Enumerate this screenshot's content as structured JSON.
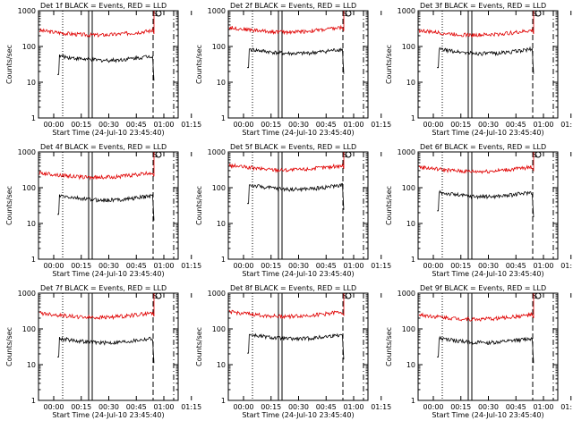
{
  "chart_data": [
    {
      "type": "line",
      "title": "Det 1f BLACK = Events, RED = LLD",
      "xlabel": "Start Time (24-Jul-10 23:45:40)",
      "ylabel": "Counts/sec",
      "y_scale": "log",
      "ylim": [
        1,
        1000
      ],
      "xticks": [
        "00:00",
        "00:15",
        "00:30",
        "00:45",
        "01:00",
        "01:15"
      ],
      "yticks": [
        "1",
        "10",
        "100",
        "1000"
      ],
      "series": [
        {
          "name": "RED",
          "color": "#e00000",
          "level": 280
        },
        {
          "name": "BLACK",
          "color": "#000000",
          "level": 55
        }
      ]
    },
    {
      "type": "line",
      "title": "Det 2f BLACK = Events, RED = LLD",
      "xlabel": "Start Time (24-Jul-10 23:45:40)",
      "ylabel": "Counts/sec",
      "y_scale": "log",
      "ylim": [
        1,
        1000
      ],
      "xticks": [
        "00:00",
        "00:15",
        "00:30",
        "00:45",
        "01:00",
        "01:15"
      ],
      "yticks": [
        "1",
        "10",
        "100",
        "1000"
      ],
      "series": [
        {
          "name": "RED",
          "color": "#e00000",
          "level": 340
        },
        {
          "name": "BLACK",
          "color": "#000000",
          "level": 85
        }
      ]
    },
    {
      "type": "line",
      "title": "Det 3f BLACK = Events, RED = LLD",
      "xlabel": "Start Time (24-Jul-10 23:45:40)",
      "ylabel": "Counts/sec",
      "y_scale": "log",
      "ylim": [
        1,
        1000
      ],
      "xticks": [
        "00:00",
        "00:15",
        "00:30",
        "00:45",
        "01:00",
        "01:15"
      ],
      "yticks": [
        "1",
        "10",
        "100",
        "1000"
      ],
      "series": [
        {
          "name": "RED",
          "color": "#e00000",
          "level": 280
        },
        {
          "name": "BLACK",
          "color": "#000000",
          "level": 85
        }
      ]
    },
    {
      "type": "line",
      "title": "Det 4f BLACK = Events, RED = LLD",
      "xlabel": "Start Time (24-Jul-10 23:45:40)",
      "ylabel": "Counts/sec",
      "y_scale": "log",
      "ylim": [
        1,
        1000
      ],
      "xticks": [
        "00:00",
        "00:15",
        "00:30",
        "00:45",
        "01:00",
        "01:15"
      ],
      "yticks": [
        "1",
        "10",
        "100",
        "1000"
      ],
      "series": [
        {
          "name": "RED",
          "color": "#e00000",
          "level": 260
        },
        {
          "name": "BLACK",
          "color": "#000000",
          "level": 60
        }
      ]
    },
    {
      "type": "line",
      "title": "Det 5f BLACK = Events, RED = LLD",
      "xlabel": "Start Time (24-Jul-10 23:45:40)",
      "ylabel": "Counts/sec",
      "y_scale": "log",
      "ylim": [
        1,
        1000
      ],
      "xticks": [
        "00:00",
        "00:15",
        "00:30",
        "00:45",
        "01:00",
        "01:15"
      ],
      "yticks": [
        "1",
        "10",
        "100",
        "1000"
      ],
      "series": [
        {
          "name": "RED",
          "color": "#e00000",
          "level": 420
        },
        {
          "name": "BLACK",
          "color": "#000000",
          "level": 120
        }
      ]
    },
    {
      "type": "line",
      "title": "Det 6f BLACK = Events, RED = LLD",
      "xlabel": "Start Time (24-Jul-10 23:45:40)",
      "ylabel": "Counts/sec",
      "y_scale": "log",
      "ylim": [
        1,
        1000
      ],
      "xticks": [
        "00:00",
        "00:15",
        "00:30",
        "00:45",
        "01:00",
        "01:15"
      ],
      "yticks": [
        "1",
        "10",
        "100",
        "1000"
      ],
      "series": [
        {
          "name": "RED",
          "color": "#e00000",
          "level": 380
        },
        {
          "name": "BLACK",
          "color": "#000000",
          "level": 75
        }
      ]
    },
    {
      "type": "line",
      "title": "Det 7f BLACK = Events, RED = LLD",
      "xlabel": "Start Time (24-Jul-10 23:45:40)",
      "ylabel": "Counts/sec",
      "y_scale": "log",
      "ylim": [
        1,
        1000
      ],
      "xticks": [
        "00:00",
        "00:15",
        "00:30",
        "00:45",
        "01:00",
        "01:15"
      ],
      "yticks": [
        "1",
        "10",
        "100",
        "1000"
      ],
      "series": [
        {
          "name": "RED",
          "color": "#e00000",
          "level": 280
        },
        {
          "name": "BLACK",
          "color": "#000000",
          "level": 55
        }
      ]
    },
    {
      "type": "line",
      "title": "Det 8f BLACK = Events, RED = LLD",
      "xlabel": "Start Time (24-Jul-10 23:45:40)",
      "ylabel": "Counts/sec",
      "y_scale": "log",
      "ylim": [
        1,
        1000
      ],
      "xticks": [
        "00:00",
        "00:15",
        "00:30",
        "00:45",
        "01:00",
        "01:15"
      ],
      "yticks": [
        "1",
        "10",
        "100",
        "1000"
      ],
      "series": [
        {
          "name": "RED",
          "color": "#e00000",
          "level": 300
        },
        {
          "name": "BLACK",
          "color": "#000000",
          "level": 70
        }
      ]
    },
    {
      "type": "line",
      "title": "Det 9f BLACK = Events, RED = LLD",
      "xlabel": "Start Time (24-Jul-10 23:45:40)",
      "ylabel": "Counts/sec",
      "y_scale": "log",
      "ylim": [
        1,
        1000
      ],
      "xticks": [
        "00:00",
        "00:15",
        "00:30",
        "00:45",
        "01:00",
        "01:15"
      ],
      "yticks": [
        "1",
        "10",
        "100",
        "1000"
      ],
      "series": [
        {
          "name": "RED",
          "color": "#e00000",
          "level": 250
        },
        {
          "name": "BLACK",
          "color": "#000000",
          "level": 55
        }
      ]
    }
  ],
  "markers": {
    "saa_label": "S"
  }
}
